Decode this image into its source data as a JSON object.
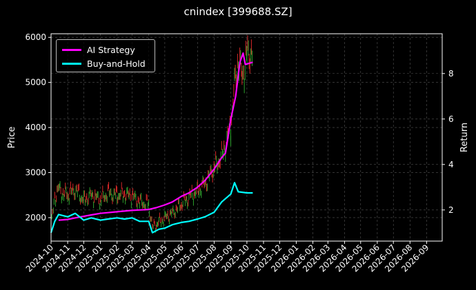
{
  "chart_data": {
    "type": "line",
    "title": "cnindex [399688.SZ]",
    "xlabel": "",
    "ylabel": "Price",
    "y2label": "Return",
    "x_tick_labels": [
      "2024-10",
      "2024-11",
      "2024-12",
      "2025-01",
      "2025-02",
      "2025-03",
      "2025-04",
      "2025-05",
      "2025-06",
      "2025-07",
      "2025-08",
      "2025-09",
      "2025-10",
      "2025-11",
      "2025-12",
      "2026-01",
      "2026-02",
      "2026-03",
      "2026-04",
      "2026-05",
      "2026-06",
      "2026-07",
      "2026-08",
      "2026-09"
    ],
    "xlim": [
      "2024-10-01",
      "2026-09-30"
    ],
    "ylim": [
      1480,
      6080
    ],
    "y_ticks": [
      2000,
      3000,
      4000,
      5000,
      6000
    ],
    "y2lim": [
      0.63,
      9.75
    ],
    "y2_ticks": [
      2,
      4,
      6,
      8
    ],
    "grid": true,
    "legend_position": "top-left",
    "series": [
      {
        "name": "AI Strategy",
        "axis": "right",
        "color": "#ff00ff",
        "points": [
          [
            "2024-10-15",
            1.55
          ],
          [
            "2024-11-01",
            1.58
          ],
          [
            "2024-11-15",
            1.65
          ],
          [
            "2024-12-01",
            1.72
          ],
          [
            "2024-12-15",
            1.78
          ],
          [
            "2025-01-01",
            1.85
          ],
          [
            "2025-01-15",
            1.88
          ],
          [
            "2025-02-01",
            1.92
          ],
          [
            "2025-02-15",
            1.95
          ],
          [
            "2025-03-01",
            1.98
          ],
          [
            "2025-03-15",
            2.0
          ],
          [
            "2025-04-01",
            2.02
          ],
          [
            "2025-04-15",
            2.1
          ],
          [
            "2025-05-01",
            2.22
          ],
          [
            "2025-05-15",
            2.35
          ],
          [
            "2025-06-01",
            2.6
          ],
          [
            "2025-06-15",
            2.75
          ],
          [
            "2025-07-01",
            3.0
          ],
          [
            "2025-07-15",
            3.3
          ],
          [
            "2025-08-01",
            3.8
          ],
          [
            "2025-08-15",
            4.3
          ],
          [
            "2025-08-22",
            4.5
          ],
          [
            "2025-09-01",
            6.0
          ],
          [
            "2025-09-10",
            7.0
          ],
          [
            "2025-09-18",
            8.5
          ],
          [
            "2025-09-24",
            8.9
          ],
          [
            "2025-09-28",
            8.4
          ],
          [
            "2025-10-05",
            8.45
          ],
          [
            "2025-10-12",
            8.5
          ]
        ]
      },
      {
        "name": "Buy-and-Hold",
        "axis": "right",
        "color": "#00ffff",
        "points": [
          [
            "2024-10-01",
            1.0
          ],
          [
            "2024-10-08",
            1.5
          ],
          [
            "2024-10-15",
            1.8
          ],
          [
            "2024-11-01",
            1.7
          ],
          [
            "2024-11-15",
            1.85
          ],
          [
            "2024-12-01",
            1.55
          ],
          [
            "2024-12-15",
            1.65
          ],
          [
            "2025-01-01",
            1.55
          ],
          [
            "2025-01-15",
            1.6
          ],
          [
            "2025-02-01",
            1.65
          ],
          [
            "2025-02-15",
            1.6
          ],
          [
            "2025-03-01",
            1.65
          ],
          [
            "2025-03-15",
            1.5
          ],
          [
            "2025-04-01",
            1.5
          ],
          [
            "2025-04-08",
            1.0
          ],
          [
            "2025-04-20",
            1.15
          ],
          [
            "2025-05-01",
            1.2
          ],
          [
            "2025-05-15",
            1.35
          ],
          [
            "2025-06-01",
            1.45
          ],
          [
            "2025-06-15",
            1.5
          ],
          [
            "2025-07-01",
            1.6
          ],
          [
            "2025-07-15",
            1.7
          ],
          [
            "2025-08-01",
            1.9
          ],
          [
            "2025-08-15",
            2.35
          ],
          [
            "2025-09-01",
            2.7
          ],
          [
            "2025-09-08",
            3.2
          ],
          [
            "2025-09-15",
            2.8
          ],
          [
            "2025-10-01",
            2.75
          ],
          [
            "2025-10-12",
            2.75
          ]
        ]
      },
      {
        "name": "Price",
        "axis": "left",
        "type": "candlestick",
        "up_color": "#2ca02c",
        "down_color": "#d62728",
        "points": [
          [
            "2024-10-01",
            1800
          ],
          [
            "2024-10-08",
            2450
          ],
          [
            "2024-10-15",
            2650
          ],
          [
            "2024-10-22",
            2550
          ],
          [
            "2024-11-01",
            2500
          ],
          [
            "2024-11-15",
            2620
          ],
          [
            "2024-12-01",
            2400
          ],
          [
            "2024-12-15",
            2500
          ],
          [
            "2025-01-01",
            2400
          ],
          [
            "2025-01-15",
            2550
          ],
          [
            "2025-02-01",
            2500
          ],
          [
            "2025-02-15",
            2520
          ],
          [
            "2025-03-01",
            2480
          ],
          [
            "2025-03-15",
            2350
          ],
          [
            "2025-04-01",
            2300
          ],
          [
            "2025-04-08",
            1780
          ],
          [
            "2025-04-20",
            1900
          ],
          [
            "2025-05-01",
            2000
          ],
          [
            "2025-05-15",
            2100
          ],
          [
            "2025-06-01",
            2300
          ],
          [
            "2025-06-15",
            2450
          ],
          [
            "2025-07-01",
            2600
          ],
          [
            "2025-07-15",
            2750
          ],
          [
            "2025-08-01",
            3100
          ],
          [
            "2025-08-15",
            3350
          ],
          [
            "2025-09-01",
            4000
          ],
          [
            "2025-09-08",
            4900
          ],
          [
            "2025-09-15",
            5550
          ],
          [
            "2025-09-22",
            5100
          ],
          [
            "2025-10-01",
            5600
          ],
          [
            "2025-10-12",
            5700
          ]
        ]
      }
    ]
  }
}
